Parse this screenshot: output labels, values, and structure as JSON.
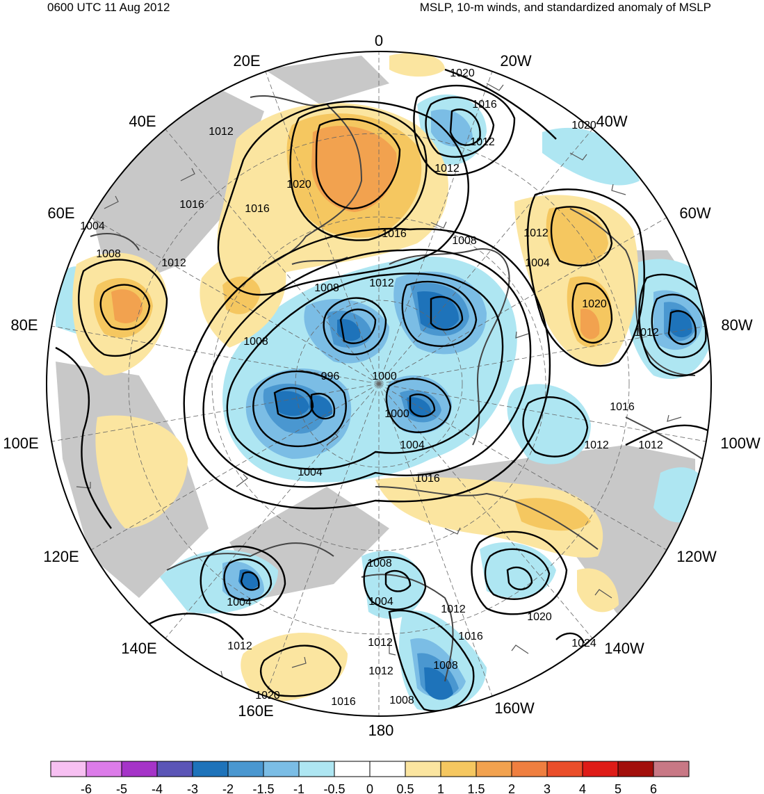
{
  "header": {
    "datetime": "0600 UTC 11 Aug 2012",
    "title": "MSLP, 10-m winds, and standardized anomaly of MSLP"
  },
  "longitude_labels": [
    "0",
    "20W",
    "40W",
    "60W",
    "80W",
    "100W",
    "120W",
    "140W",
    "160W",
    "180",
    "160E",
    "140E",
    "120E",
    "100E",
    "80E",
    "60E",
    "40E",
    "20E"
  ],
  "isobar_labels": [
    "1020",
    "1016",
    "1012",
    "1020",
    "1012",
    "1012",
    "1020",
    "1016",
    "1004",
    "1016",
    "1012",
    "1016",
    "1008",
    "1008",
    "1012",
    "1004",
    "1008",
    "1012",
    "1020",
    "1012",
    "1008",
    "996",
    "1000",
    "1000",
    "1004",
    "1004",
    "1016",
    "1016",
    "1012",
    "1012",
    "1008",
    "1004",
    "1004",
    "1012",
    "1012",
    "1016",
    "1008",
    "1012",
    "1012",
    "1020",
    "1020",
    "1016",
    "1008",
    "1024"
  ],
  "colorbar": {
    "colors": [
      "#f7c0f2",
      "#dc7ce9",
      "#a534c8",
      "#5b55b6",
      "#1e73ba",
      "#4a97d0",
      "#7bbde5",
      "#aee6f2",
      "#ffffff",
      "#ffffff",
      "#fbe5a0",
      "#f5c760",
      "#f2a24f",
      "#ef7f40",
      "#ea4e2a",
      "#de1c17",
      "#a20f0b",
      "#c87885"
    ],
    "ticks": [
      "-6",
      "-5",
      "-4",
      "-3",
      "-2",
      "-1.5",
      "-1",
      "-0.5",
      "0",
      "0.5",
      "1",
      "1.5",
      "2",
      "3",
      "4",
      "5",
      "6"
    ]
  }
}
